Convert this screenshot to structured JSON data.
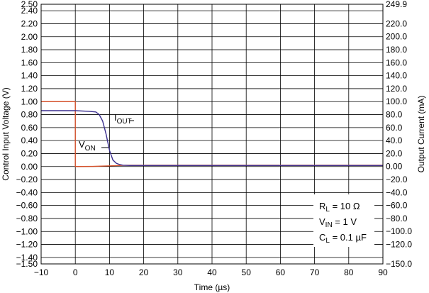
{
  "chart_data": {
    "type": "line",
    "xlabel": "Time (µs)",
    "ylabel_left": "Control Input Voltage (V)",
    "ylabel_right": "Output Current (mA)",
    "xlim": [
      -10,
      90
    ],
    "ylim_left": [
      -1.5,
      2.5
    ],
    "ylim_right": [
      -150.0,
      249.9
    ],
    "grid": true,
    "x_ticks": [
      "−10",
      "0",
      "10",
      "20",
      "30",
      "40",
      "50",
      "60",
      "70",
      "80",
      "90"
    ],
    "x_tick_values": [
      -10,
      0,
      10,
      20,
      30,
      40,
      50,
      60,
      70,
      80,
      90
    ],
    "y_left_ticks": [
      "2.50",
      "2.40",
      "2.20",
      "2.00",
      "1.80",
      "1.60",
      "1.40",
      "1.20",
      "1.00",
      "0.80",
      "0.60",
      "0.40",
      "0.20",
      "0.00",
      "−0.20",
      "−0.40",
      "−0.60",
      "−0.80",
      "−1.00",
      "−1.20",
      "−1.40",
      "−1.50"
    ],
    "y_left_tick_values": [
      2.5,
      2.4,
      2.2,
      2.0,
      1.8,
      1.6,
      1.4,
      1.2,
      1.0,
      0.8,
      0.6,
      0.4,
      0.2,
      0.0,
      -0.2,
      -0.4,
      -0.6,
      -0.8,
      -1.0,
      -1.2,
      -1.4,
      -1.5
    ],
    "y_right_ticks": [
      "249.9",
      "220.0",
      "200.0",
      "180.0",
      "160.0",
      "140.0",
      "120.0",
      "100.0",
      "80.0",
      "60.0",
      "40.0",
      "20.0",
      "0.00",
      "−20.0",
      "−40.0",
      "−60.0",
      "−80.0",
      "−100.0",
      "−120.0",
      "−150.0"
    ],
    "y_right_tick_values": [
      249.9,
      220,
      200,
      180,
      160,
      140,
      120,
      100,
      80,
      60,
      40,
      20,
      0,
      -20,
      -40,
      -60,
      -80,
      -100,
      -120,
      -150
    ],
    "series": [
      {
        "name": "VON",
        "axis": "left",
        "color": "#d4512b",
        "x": [
          -10,
          0,
          0,
          5,
          10,
          15,
          20,
          90
        ],
        "y": [
          1.0,
          1.0,
          0.0,
          0.002,
          0.01,
          0.02,
          0.02,
          0.02
        ]
      },
      {
        "name": "IOUT",
        "axis": "right",
        "color": "#3b2f8f",
        "x": [
          -10,
          -5,
          0,
          4,
          6,
          7,
          8,
          9,
          10,
          11,
          12,
          13,
          14,
          16,
          20,
          30,
          50,
          90
        ],
        "y": [
          86,
          86,
          86,
          85,
          84,
          80,
          70,
          50,
          25,
          10,
          5,
          3,
          2,
          1.5,
          1.5,
          1.5,
          1.5,
          1.5
        ]
      }
    ],
    "annotations": {
      "iout_label": {
        "main": "I",
        "sub": "OUT"
      },
      "von_label": {
        "main": "V",
        "sub": "ON"
      },
      "conditions": [
        {
          "main": "R",
          "sub": "L",
          "rest": " = 10 Ω"
        },
        {
          "main": "V",
          "sub": "IN",
          "rest": " = 1 V"
        },
        {
          "main": "C",
          "sub": "L",
          "rest": " = 0.1 µF"
        }
      ]
    }
  }
}
